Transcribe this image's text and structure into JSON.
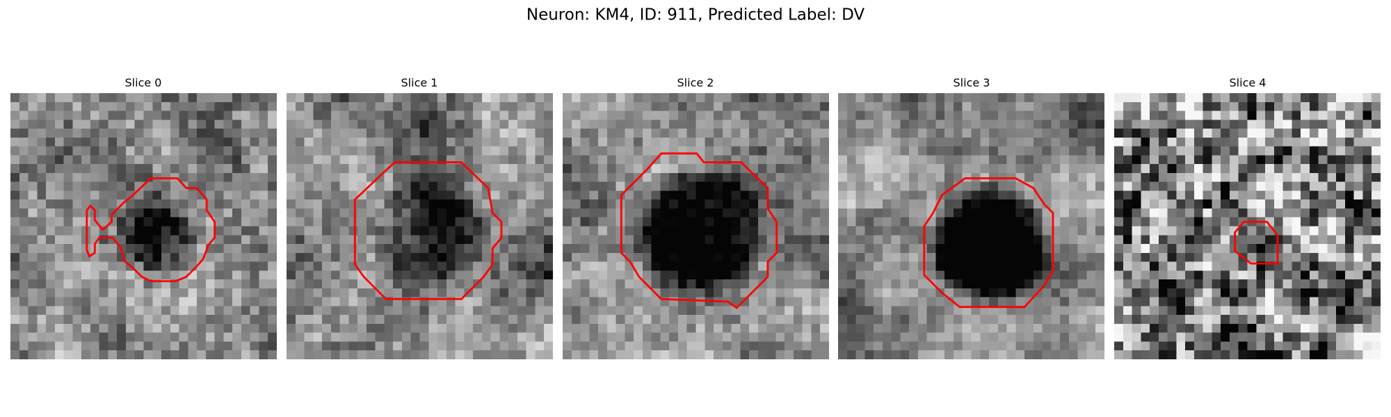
{
  "title": "Neuron: KM4, ID: 911, Predicted Label: DV",
  "panels": [
    {
      "title": "Slice 0"
    },
    {
      "title": "Slice 1"
    },
    {
      "title": "Slice 2"
    },
    {
      "title": "Slice 3"
    },
    {
      "title": "Slice 4"
    }
  ]
}
